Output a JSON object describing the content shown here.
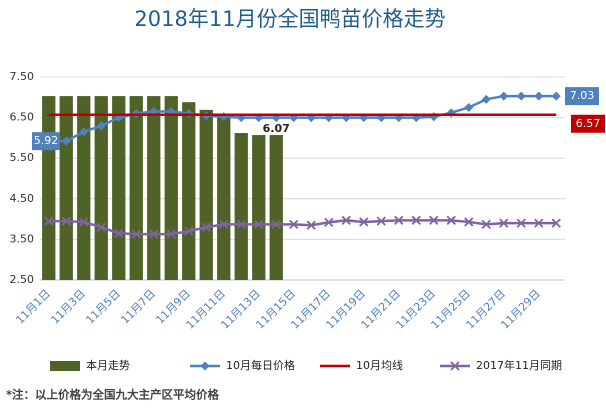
{
  "chart_data": {
    "type": "bar",
    "title": "2018年11月份全国鸭苗价格走势",
    "categories": [
      "11月1日",
      null,
      "11月3日",
      null,
      "11月5日",
      null,
      "11月7日",
      null,
      "11月9日",
      null,
      "11月11日",
      null,
      "11月13日",
      null,
      "11月15日",
      null,
      "11月17日",
      null,
      "11月19日",
      null,
      "11月21日",
      null,
      "11月23日",
      null,
      "11月25日",
      null,
      "11月27日",
      null,
      "11月29日",
      null
    ],
    "series": [
      {
        "name": "本月走势",
        "type": "bar",
        "color": "#4f6228",
        "values": [
          7.03,
          7.03,
          7.03,
          7.03,
          7.03,
          7.03,
          7.03,
          7.03,
          6.88,
          6.69,
          6.56,
          6.12,
          6.07,
          6.07,
          null,
          null,
          null,
          null,
          null,
          null,
          null,
          null,
          null,
          null,
          null,
          null,
          null,
          null,
          null,
          null
        ]
      },
      {
        "name": "10月每日价格",
        "type": "line",
        "marker": "diamond",
        "color": "#4f81bd",
        "values": [
          5.92,
          5.92,
          6.15,
          6.3,
          6.5,
          6.6,
          6.65,
          6.65,
          6.6,
          6.55,
          6.52,
          6.5,
          6.5,
          6.5,
          6.5,
          6.5,
          6.5,
          6.5,
          6.5,
          6.5,
          6.5,
          6.5,
          6.52,
          6.62,
          6.75,
          6.95,
          7.03,
          7.03,
          7.03,
          7.03
        ]
      },
      {
        "name": "10月均线",
        "type": "line",
        "marker": "none",
        "color": "#c00000",
        "values": [
          6.57,
          6.57,
          6.57,
          6.57,
          6.57,
          6.57,
          6.57,
          6.57,
          6.57,
          6.57,
          6.57,
          6.57,
          6.57,
          6.57,
          6.57,
          6.57,
          6.57,
          6.57,
          6.57,
          6.57,
          6.57,
          6.57,
          6.57,
          6.57,
          6.57,
          6.57,
          6.57,
          6.57,
          6.57,
          6.57
        ]
      },
      {
        "name": "2017年11月同期",
        "type": "line",
        "marker": "x",
        "color": "#8064a2",
        "values": [
          3.95,
          3.95,
          3.93,
          3.8,
          3.65,
          3.63,
          3.63,
          3.63,
          3.7,
          3.8,
          3.87,
          3.87,
          3.87,
          3.87,
          3.87,
          3.85,
          3.92,
          3.97,
          3.93,
          3.95,
          3.97,
          3.97,
          3.97,
          3.97,
          3.93,
          3.87,
          3.9,
          3.9,
          3.9,
          3.9
        ]
      }
    ],
    "ylim": [
      2.5,
      7.5
    ],
    "yticks": [
      {
        "value": 2.5,
        "label": "2.50"
      },
      {
        "value": 3.5,
        "label": "3.50"
      },
      {
        "value": 4.5,
        "label": "4.50"
      },
      {
        "value": 5.5,
        "label": "5.50"
      },
      {
        "value": 6.5,
        "label": "6.50"
      },
      {
        "value": 7.5,
        "label": "7.50"
      }
    ],
    "grid": true,
    "legend": "bottom",
    "note": "*注：以上价格为全国九大主产区平均价格"
  }
}
